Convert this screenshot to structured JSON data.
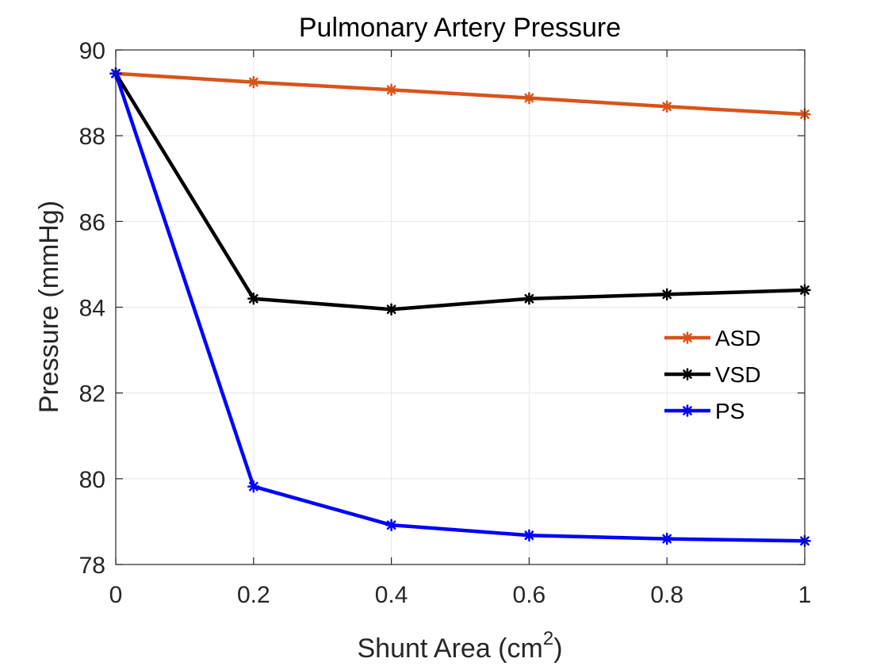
{
  "chart_data": {
    "type": "line",
    "title": "Pulmonary Artery Pressure",
    "xlabel": "Shunt Area (cm",
    "xlabel_sup": "2",
    "xlabel_close": ")",
    "ylabel": "Pressure (mmHg)",
    "x": [
      0,
      0.2,
      0.4,
      0.6,
      0.8,
      1
    ],
    "xlim": [
      0,
      1
    ],
    "ylim": [
      78,
      90
    ],
    "xticks": [
      0,
      0.2,
      0.4,
      0.6,
      0.8,
      1
    ],
    "xtick_labels": [
      "0",
      "0.2",
      "0.4",
      "0.6",
      "0.8",
      "1"
    ],
    "yticks": [
      78,
      80,
      82,
      84,
      86,
      88,
      90
    ],
    "ytick_labels": [
      "78",
      "80",
      "82",
      "84",
      "86",
      "88",
      "90"
    ],
    "grid": true,
    "legend_position": "right",
    "series": [
      {
        "name": "ASD",
        "color": "#D95319",
        "marker": "asterisk",
        "values": [
          89.45,
          89.25,
          89.07,
          88.88,
          88.68,
          88.5
        ]
      },
      {
        "name": "VSD",
        "color": "#000000",
        "marker": "asterisk",
        "values": [
          89.45,
          84.2,
          83.95,
          84.2,
          84.3,
          84.4
        ]
      },
      {
        "name": "PS",
        "color": "#0000FF",
        "marker": "asterisk",
        "values": [
          89.45,
          79.82,
          78.92,
          78.68,
          78.6,
          78.55
        ]
      }
    ]
  }
}
